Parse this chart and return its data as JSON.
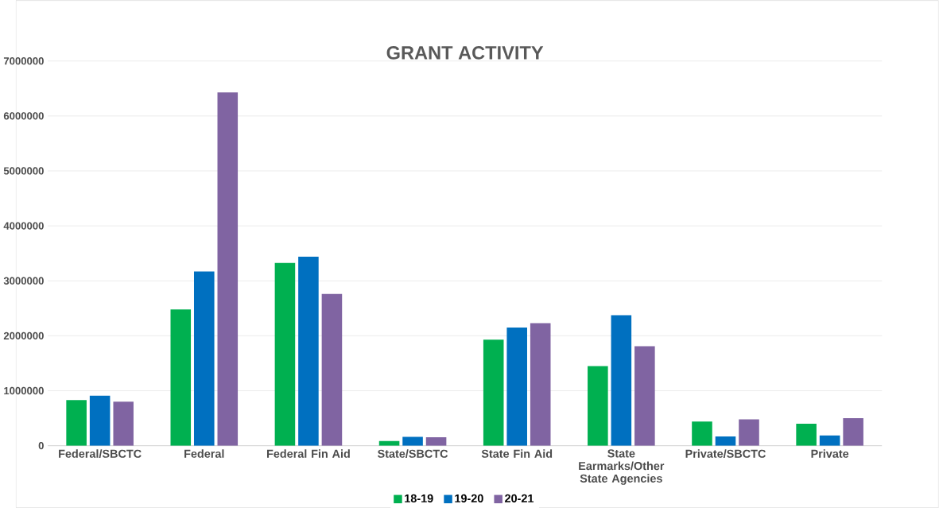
{
  "chart_data": {
    "type": "bar",
    "title": "GRANT ACTIVITY",
    "categories": [
      "Federal/SBCTC",
      "Federal",
      "Federal Fin Aid",
      "State/SBCTC",
      "State Fin Aid",
      "State Earmarks/Other State Agencies",
      "Private/SBCTC",
      "Private"
    ],
    "series": [
      {
        "name": "18-19",
        "color": "#00b050",
        "values": [
          830000,
          2480000,
          3330000,
          85000,
          1930000,
          1450000,
          440000,
          400000
        ]
      },
      {
        "name": "19-20",
        "color": "#0070c0",
        "values": [
          910000,
          3170000,
          3440000,
          160000,
          2150000,
          2375000,
          170000,
          185000
        ]
      },
      {
        "name": "20-21",
        "color": "#8064a2",
        "values": [
          800000,
          6430000,
          2760000,
          155000,
          2230000,
          1810000,
          480000,
          500000
        ]
      }
    ],
    "ylim": [
      0,
      7000000
    ],
    "yticks": [
      0,
      1000000,
      2000000,
      3000000,
      4000000,
      5000000,
      6000000,
      7000000
    ],
    "grid": "y",
    "legend": "bottom"
  }
}
